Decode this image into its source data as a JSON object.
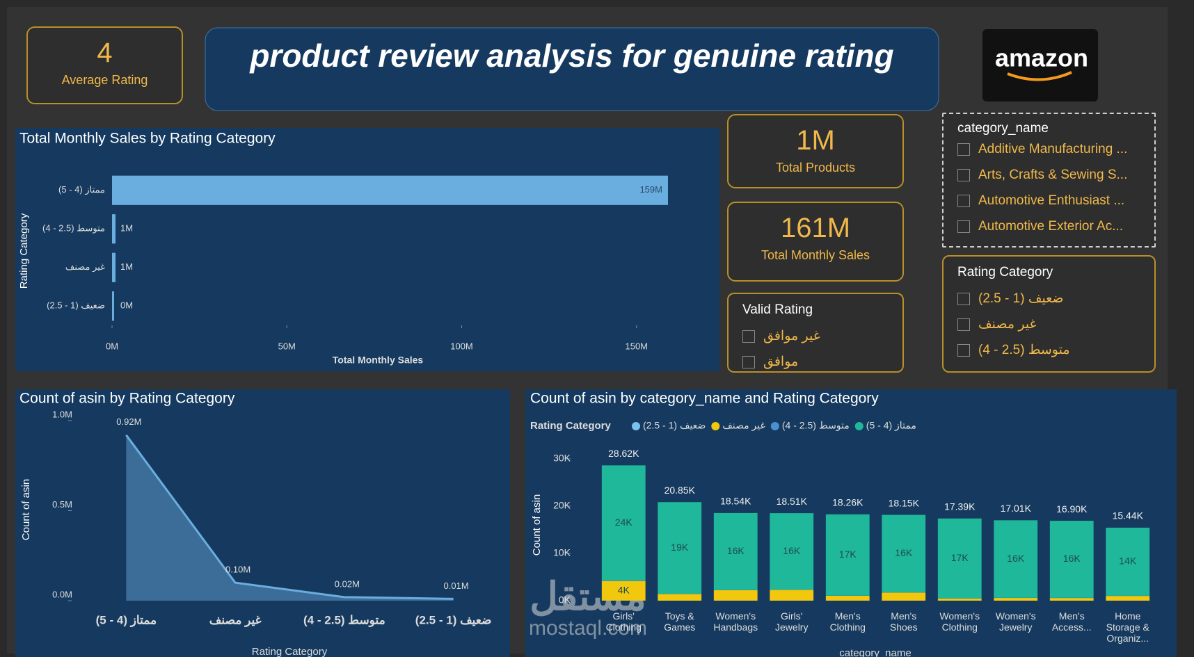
{
  "header": {
    "title": "product review analysis for genuine rating",
    "logo": "amazon"
  },
  "kpis": [
    {
      "value": "4",
      "label": "Average Rating"
    },
    {
      "value": "1M",
      "label": "Total Products"
    },
    {
      "value": "161M",
      "label": "Total Monthly Sales"
    }
  ],
  "slicers": [
    {
      "title": "Valid Rating",
      "items": [
        "غير موافق",
        "موافق"
      ]
    },
    {
      "title": "category_name",
      "items": [
        "Additive Manufacturing ...",
        "Arts, Crafts & Sewing S...",
        "Automotive Enthusiast ...",
        "Automotive Exterior Ac..."
      ]
    },
    {
      "title": "Rating Category",
      "items": [
        "ضعيف (1 - 2.5)",
        "غير مصنف",
        "متوسط (2.5 - 4)"
      ]
    }
  ],
  "chart_data": [
    {
      "type": "hbar",
      "title": "Total Monthly Sales by Rating Category",
      "categories": [
        "ممتاز (4 - 5)",
        "متوسط (2.5 - 4)",
        "غير مصنف",
        "ضعيف (1 - 2.5)"
      ],
      "values": [
        159000000,
        1000000,
        1000000,
        400000
      ],
      "value_labels": [
        "159M",
        "1M",
        "1M",
        "0M"
      ],
      "color": "#6aaee0",
      "xlim": [
        0,
        160000000
      ],
      "xticks": [
        {
          "value": 0,
          "label": "0M"
        },
        {
          "value": 50000000,
          "label": "50M"
        },
        {
          "value": 100000000,
          "label": "100M"
        },
        {
          "value": 150000000,
          "label": "150M"
        }
      ],
      "xlabel": "Total Monthly Sales",
      "ylabel": "Rating Category"
    },
    {
      "type": "area",
      "title": "Count of asin by Rating Category",
      "categories": [
        "ممتاز (4 - 5)",
        "غير مصنف",
        "متوسط (2.5 - 4)",
        "ضعيف (1 - 2.5)"
      ],
      "values": [
        920000,
        100000,
        20000,
        10000
      ],
      "value_labels": [
        "0.92M",
        "0.10M",
        "0.02M",
        "0.01M"
      ],
      "color": "#6aaee0",
      "ylim": [
        0,
        1000000
      ],
      "yticks": [
        {
          "value": 0,
          "label": "0.0M"
        },
        {
          "value": 500000,
          "label": "0.5M"
        },
        {
          "value": 1000000,
          "label": "1.0M"
        }
      ],
      "xlabel": "Rating Category",
      "ylabel": "Count of asin"
    },
    {
      "type": "stacked_bar",
      "title": "Count of asin by category_name and Rating Category",
      "legend_title": "Rating Category",
      "categories": [
        "Girls' Clothing",
        "Toys & Games",
        "Women's Handbags",
        "Girls' Jewelry",
        "Men's Clothing",
        "Men's Shoes",
        "Women's Clothing",
        "Women's Jewelry",
        "Men's Access...",
        "Home Storage & Organiz..."
      ],
      "series": [
        {
          "name": "ضعيف (1 - 2.5)",
          "color": "#7cc0f0",
          "values": [
            20,
            10,
            10,
            10,
            10,
            10,
            10,
            10,
            10,
            10
          ]
        },
        {
          "name": "غير مصنف",
          "color": "#f2c80f",
          "values": [
            4150,
            1400,
            2200,
            2270,
            1020,
            1710,
            450,
            570,
            560,
            1000
          ],
          "value_labels": [
            "4K",
            null,
            null,
            null,
            null,
            null,
            null,
            null,
            null,
            null
          ]
        },
        {
          "name": "متوسط (2.5 - 4)",
          "color": "#4a8fd0",
          "values": [
            50,
            40,
            30,
            30,
            30,
            30,
            30,
            30,
            30,
            30
          ]
        },
        {
          "name": "ممتاز (4 - 5)",
          "color": "#1fb89a",
          "values": [
            24400,
            19400,
            16300,
            16200,
            17200,
            16400,
            16900,
            16400,
            16300,
            14400
          ],
          "value_labels": [
            "24K",
            "19K",
            "16K",
            "16K",
            "17K",
            "16K",
            "17K",
            "16K",
            "16K",
            "14K"
          ]
        }
      ],
      "totals": [
        28620,
        20850,
        18540,
        18510,
        18260,
        18150,
        17390,
        17010,
        16900,
        15440
      ],
      "total_labels": [
        "28.62K",
        "20.85K",
        "18.54K",
        "18.51K",
        "18.26K",
        "18.15K",
        "17.39K",
        "17.01K",
        "16.90K",
        "15.44K"
      ],
      "ylim": [
        0,
        30000
      ],
      "yticks": [
        {
          "value": 0,
          "label": "0K"
        },
        {
          "value": 10000,
          "label": "10K"
        },
        {
          "value": 20000,
          "label": "20K"
        },
        {
          "value": 30000,
          "label": "30K"
        }
      ],
      "xlabel": "category_name",
      "ylabel": "Count of asin"
    }
  ],
  "watermark": {
    "arabic": "مستقل",
    "latin": "mostaql.com"
  }
}
